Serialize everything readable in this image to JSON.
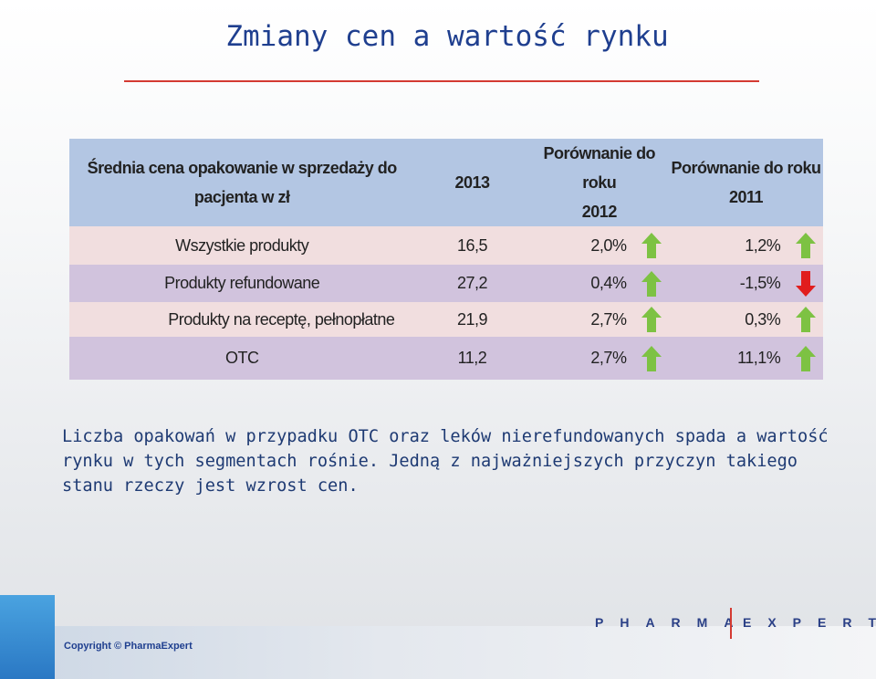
{
  "title": "Zmiany cen a wartość rynku",
  "table": {
    "header": {
      "label_line1": "Średnia cena opakowanie w sprzedaży do",
      "label_line2": "pacjenta w zł",
      "col_2013": "2013",
      "col_2012_line1": "Porównanie do roku",
      "col_2012_line2": "2012",
      "col_2011_line1": "Porównanie do roku",
      "col_2011_line2": "2011"
    },
    "rows": [
      {
        "label": "Wszystkie produkty",
        "v2013": "16,5",
        "v2012": "2,0%",
        "dir2012": "up",
        "v2011": "1,2%",
        "dir2011": "up"
      },
      {
        "label": "Produkty refundowane",
        "v2013": "27,2",
        "v2012": "0,4%",
        "dir2012": "up",
        "v2011": "-1,5%",
        "dir2011": "down"
      },
      {
        "label": "Produkty na receptę, pełnopłatne",
        "v2013": "21,9",
        "v2012": "2,7%",
        "dir2012": "up",
        "v2011": "0,3%",
        "dir2011": "up"
      },
      {
        "label": "OTC",
        "v2013": "11,2",
        "v2012": "2,7%",
        "dir2012": "up",
        "v2011": "11,1%",
        "dir2011": "up"
      }
    ]
  },
  "body_text": "Liczba opakowań w przypadku OTC oraz leków nierefundowanych spada a wartość rynku w tych segmentach rośnie. Jedną z najważniejszych przyczyn takiego stanu rzeczy jest wzrost cen.",
  "footer": {
    "copyright": "Copyright © PharmaExpert",
    "logo_left": "PHARMA",
    "logo_right": "EXPERT"
  },
  "colors": {
    "up_arrow": "#7dc243",
    "down_arrow": "#e11d1d",
    "title": "#1f3f8f",
    "accent_rule": "#d43a32"
  }
}
